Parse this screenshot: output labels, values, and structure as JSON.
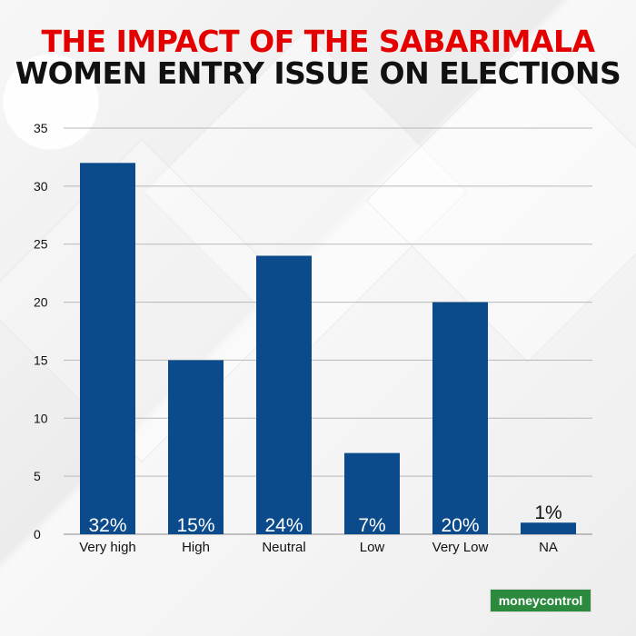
{
  "title": {
    "line1": "THE IMPACT OF THE SABARIMALA",
    "line2": "WOMEN ENTRY ISSUE ON ELECTIONS"
  },
  "colors": {
    "title_accent": "#e50000",
    "title_text": "#111111",
    "bar": "#0b4a8b",
    "brand": "#2b8a3e"
  },
  "brand": {
    "logo_text": "moneycontrol"
  },
  "chart_data": {
    "type": "bar",
    "title": "THE IMPACT OF THE SABARIMALA WOMEN ENTRY ISSUE ON ELECTIONS",
    "categories": [
      "Very high",
      "High",
      "Neutral",
      "Low",
      "Very Low",
      "NA"
    ],
    "values": [
      32,
      15,
      24,
      7,
      20,
      1
    ],
    "data_labels": [
      "32%",
      "15%",
      "24%",
      "7%",
      "20%",
      "1%"
    ],
    "ylim": [
      0,
      35
    ],
    "yticks": [
      0,
      5,
      10,
      15,
      20,
      25,
      30,
      35
    ],
    "grid": true,
    "legend": "none",
    "xlabel": "",
    "ylabel": ""
  }
}
